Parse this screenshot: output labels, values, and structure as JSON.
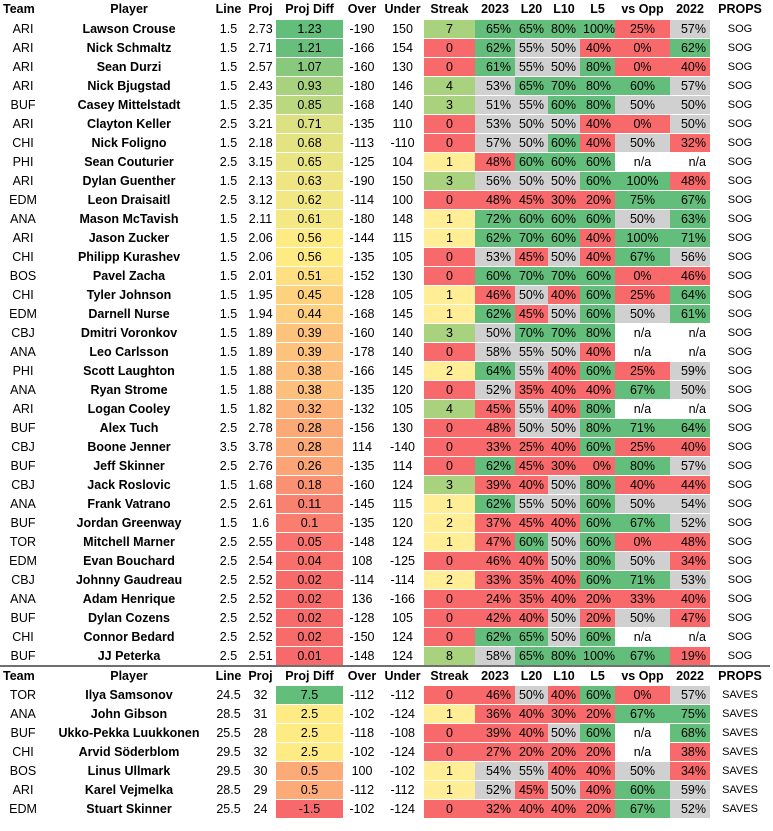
{
  "headers": [
    "Team",
    "Player",
    "Line",
    "Proj",
    "Proj Diff",
    "Over",
    "Under",
    "Streak",
    "2023",
    "L20",
    "L10",
    "L5",
    "vs Opp",
    "2022",
    "PROPS"
  ],
  "sog_rows": [
    [
      "ARI",
      "Lawson Crouse",
      "1.5",
      "2.73",
      "1.23",
      "-190",
      "150",
      "7",
      "65%",
      "65%",
      "80%",
      "100%",
      "25%",
      "57%",
      "SOG"
    ],
    [
      "ARI",
      "Nick Schmaltz",
      "1.5",
      "2.71",
      "1.21",
      "-166",
      "154",
      "0",
      "62%",
      "55%",
      "50%",
      "40%",
      "0%",
      "62%",
      "SOG"
    ],
    [
      "ARI",
      "Sean Durzi",
      "1.5",
      "2.57",
      "1.07",
      "-160",
      "130",
      "0",
      "61%",
      "55%",
      "50%",
      "80%",
      "0%",
      "40%",
      "SOG"
    ],
    [
      "ARI",
      "Nick Bjugstad",
      "1.5",
      "2.43",
      "0.93",
      "-180",
      "146",
      "4",
      "53%",
      "65%",
      "70%",
      "80%",
      "60%",
      "57%",
      "SOG"
    ],
    [
      "BUF",
      "Casey Mittelstadt",
      "1.5",
      "2.35",
      "0.85",
      "-168",
      "140",
      "3",
      "51%",
      "55%",
      "60%",
      "80%",
      "50%",
      "50%",
      "SOG"
    ],
    [
      "ARI",
      "Clayton Keller",
      "2.5",
      "3.21",
      "0.71",
      "-135",
      "110",
      "0",
      "53%",
      "50%",
      "50%",
      "40%",
      "0%",
      "50%",
      "SOG"
    ],
    [
      "CHI",
      "Nick Foligno",
      "1.5",
      "2.18",
      "0.68",
      "-113",
      "-110",
      "0",
      "57%",
      "50%",
      "60%",
      "40%",
      "50%",
      "32%",
      "SOG"
    ],
    [
      "PHI",
      "Sean Couturier",
      "2.5",
      "3.15",
      "0.65",
      "-125",
      "104",
      "1",
      "48%",
      "60%",
      "60%",
      "60%",
      "n/a",
      "n/a",
      "SOG"
    ],
    [
      "ARI",
      "Dylan Guenther",
      "1.5",
      "2.13",
      "0.63",
      "-190",
      "150",
      "3",
      "56%",
      "50%",
      "50%",
      "60%",
      "100%",
      "48%",
      "SOG"
    ],
    [
      "EDM",
      "Leon Draisaitl",
      "2.5",
      "3.12",
      "0.62",
      "-114",
      "100",
      "0",
      "48%",
      "45%",
      "30%",
      "20%",
      "75%",
      "67%",
      "SOG"
    ],
    [
      "ANA",
      "Mason McTavish",
      "1.5",
      "2.11",
      "0.61",
      "-180",
      "148",
      "1",
      "72%",
      "60%",
      "60%",
      "60%",
      "50%",
      "63%",
      "SOG"
    ],
    [
      "ARI",
      "Jason Zucker",
      "1.5",
      "2.06",
      "0.56",
      "-144",
      "115",
      "1",
      "62%",
      "70%",
      "60%",
      "40%",
      "100%",
      "71%",
      "SOG"
    ],
    [
      "CHI",
      "Philipp Kurashev",
      "1.5",
      "2.06",
      "0.56",
      "-135",
      "105",
      "0",
      "53%",
      "45%",
      "50%",
      "40%",
      "67%",
      "56%",
      "SOG"
    ],
    [
      "BOS",
      "Pavel Zacha",
      "1.5",
      "2.01",
      "0.51",
      "-152",
      "130",
      "0",
      "60%",
      "70%",
      "70%",
      "60%",
      "0%",
      "46%",
      "SOG"
    ],
    [
      "CHI",
      "Tyler Johnson",
      "1.5",
      "1.95",
      "0.45",
      "-128",
      "105",
      "1",
      "46%",
      "50%",
      "40%",
      "60%",
      "25%",
      "64%",
      "SOG"
    ],
    [
      "EDM",
      "Darnell Nurse",
      "1.5",
      "1.94",
      "0.44",
      "-168",
      "145",
      "1",
      "62%",
      "45%",
      "50%",
      "60%",
      "50%",
      "61%",
      "SOG"
    ],
    [
      "CBJ",
      "Dmitri Voronkov",
      "1.5",
      "1.89",
      "0.39",
      "-160",
      "140",
      "3",
      "50%",
      "70%",
      "70%",
      "80%",
      "n/a",
      "n/a",
      "SOG"
    ],
    [
      "ANA",
      "Leo Carlsson",
      "1.5",
      "1.89",
      "0.39",
      "-178",
      "140",
      "0",
      "58%",
      "55%",
      "50%",
      "40%",
      "n/a",
      "n/a",
      "SOG"
    ],
    [
      "PHI",
      "Scott Laughton",
      "1.5",
      "1.88",
      "0.38",
      "-166",
      "145",
      "2",
      "64%",
      "55%",
      "40%",
      "60%",
      "25%",
      "59%",
      "SOG"
    ],
    [
      "ANA",
      "Ryan Strome",
      "1.5",
      "1.88",
      "0.38",
      "-135",
      "120",
      "0",
      "52%",
      "35%",
      "40%",
      "40%",
      "67%",
      "50%",
      "SOG"
    ],
    [
      "ARI",
      "Logan Cooley",
      "1.5",
      "1.82",
      "0.32",
      "-132",
      "105",
      "4",
      "45%",
      "55%",
      "40%",
      "80%",
      "n/a",
      "n/a",
      "SOG"
    ],
    [
      "BUF",
      "Alex Tuch",
      "2.5",
      "2.78",
      "0.28",
      "-156",
      "130",
      "0",
      "48%",
      "50%",
      "50%",
      "80%",
      "71%",
      "64%",
      "SOG"
    ],
    [
      "CBJ",
      "Boone Jenner",
      "3.5",
      "3.78",
      "0.28",
      "114",
      "-140",
      "0",
      "33%",
      "25%",
      "40%",
      "60%",
      "25%",
      "40%",
      "SOG"
    ],
    [
      "BUF",
      "Jeff Skinner",
      "2.5",
      "2.76",
      "0.26",
      "-135",
      "114",
      "0",
      "62%",
      "45%",
      "30%",
      "0%",
      "80%",
      "57%",
      "SOG"
    ],
    [
      "CBJ",
      "Jack Roslovic",
      "1.5",
      "1.68",
      "0.18",
      "-160",
      "124",
      "3",
      "39%",
      "40%",
      "50%",
      "80%",
      "40%",
      "44%",
      "SOG"
    ],
    [
      "ANA",
      "Frank Vatrano",
      "2.5",
      "2.61",
      "0.11",
      "-145",
      "115",
      "1",
      "62%",
      "55%",
      "50%",
      "60%",
      "50%",
      "54%",
      "SOG"
    ],
    [
      "BUF",
      "Jordan Greenway",
      "1.5",
      "1.6",
      "0.1",
      "-135",
      "120",
      "2",
      "37%",
      "45%",
      "40%",
      "60%",
      "67%",
      "52%",
      "SOG"
    ],
    [
      "TOR",
      "Mitchell Marner",
      "2.5",
      "2.55",
      "0.05",
      "-148",
      "124",
      "1",
      "47%",
      "60%",
      "50%",
      "60%",
      "0%",
      "48%",
      "SOG"
    ],
    [
      "EDM",
      "Evan Bouchard",
      "2.5",
      "2.54",
      "0.04",
      "108",
      "-125",
      "0",
      "46%",
      "40%",
      "50%",
      "80%",
      "50%",
      "34%",
      "SOG"
    ],
    [
      "CBJ",
      "Johnny Gaudreau",
      "2.5",
      "2.52",
      "0.02",
      "-114",
      "-114",
      "2",
      "33%",
      "35%",
      "40%",
      "60%",
      "71%",
      "53%",
      "SOG"
    ],
    [
      "ANA",
      "Adam Henrique",
      "2.5",
      "2.52",
      "0.02",
      "136",
      "-166",
      "0",
      "24%",
      "35%",
      "40%",
      "20%",
      "33%",
      "40%",
      "SOG"
    ],
    [
      "BUF",
      "Dylan Cozens",
      "2.5",
      "2.52",
      "0.02",
      "-128",
      "105",
      "0",
      "42%",
      "40%",
      "50%",
      "20%",
      "50%",
      "47%",
      "SOG"
    ],
    [
      "CHI",
      "Connor Bedard",
      "2.5",
      "2.52",
      "0.02",
      "-150",
      "124",
      "0",
      "62%",
      "65%",
      "50%",
      "60%",
      "n/a",
      "n/a",
      "SOG"
    ],
    [
      "BUF",
      "JJ Peterka",
      "2.5",
      "2.51",
      "0.01",
      "-148",
      "124",
      "8",
      "58%",
      "65%",
      "80%",
      "100%",
      "67%",
      "19%",
      "SOG"
    ]
  ],
  "saves_rows": [
    [
      "TOR",
      "Ilya Samsonov",
      "24.5",
      "32",
      "7.5",
      "-112",
      "-112",
      "0",
      "46%",
      "50%",
      "40%",
      "60%",
      "0%",
      "57%",
      "SAVES"
    ],
    [
      "ANA",
      "John Gibson",
      "28.5",
      "31",
      "2.5",
      "-102",
      "-124",
      "1",
      "36%",
      "40%",
      "30%",
      "20%",
      "67%",
      "75%",
      "SAVES"
    ],
    [
      "BUF",
      "Ukko-Pekka Luukkonen",
      "25.5",
      "28",
      "2.5",
      "-118",
      "-108",
      "0",
      "39%",
      "40%",
      "50%",
      "60%",
      "n/a",
      "68%",
      "SAVES"
    ],
    [
      "CHI",
      "Arvid Söderblom",
      "29.5",
      "32",
      "2.5",
      "-102",
      "-124",
      "0",
      "27%",
      "20%",
      "20%",
      "20%",
      "n/a",
      "38%",
      "SAVES"
    ],
    [
      "BOS",
      "Linus Ullmark",
      "29.5",
      "30",
      "0.5",
      "100",
      "-102",
      "1",
      "54%",
      "55%",
      "40%",
      "40%",
      "50%",
      "34%",
      "SAVES"
    ],
    [
      "ARI",
      "Karel Vejmelka",
      "28.5",
      "29",
      "0.5",
      "-112",
      "-112",
      "1",
      "52%",
      "45%",
      "50%",
      "40%",
      "60%",
      "59%",
      "SAVES"
    ],
    [
      "EDM",
      "Stuart Skinner",
      "25.5",
      "24",
      "-1.5",
      "-102",
      "-124",
      "0",
      "32%",
      "40%",
      "40%",
      "20%",
      "67%",
      "52%",
      "SAVES"
    ]
  ],
  "colors": {
    "green": "#63be7b",
    "yellow": "#ffeb84",
    "red": "#f8696b",
    "gray": "#d0d0d0",
    "white": "#ffffff"
  }
}
